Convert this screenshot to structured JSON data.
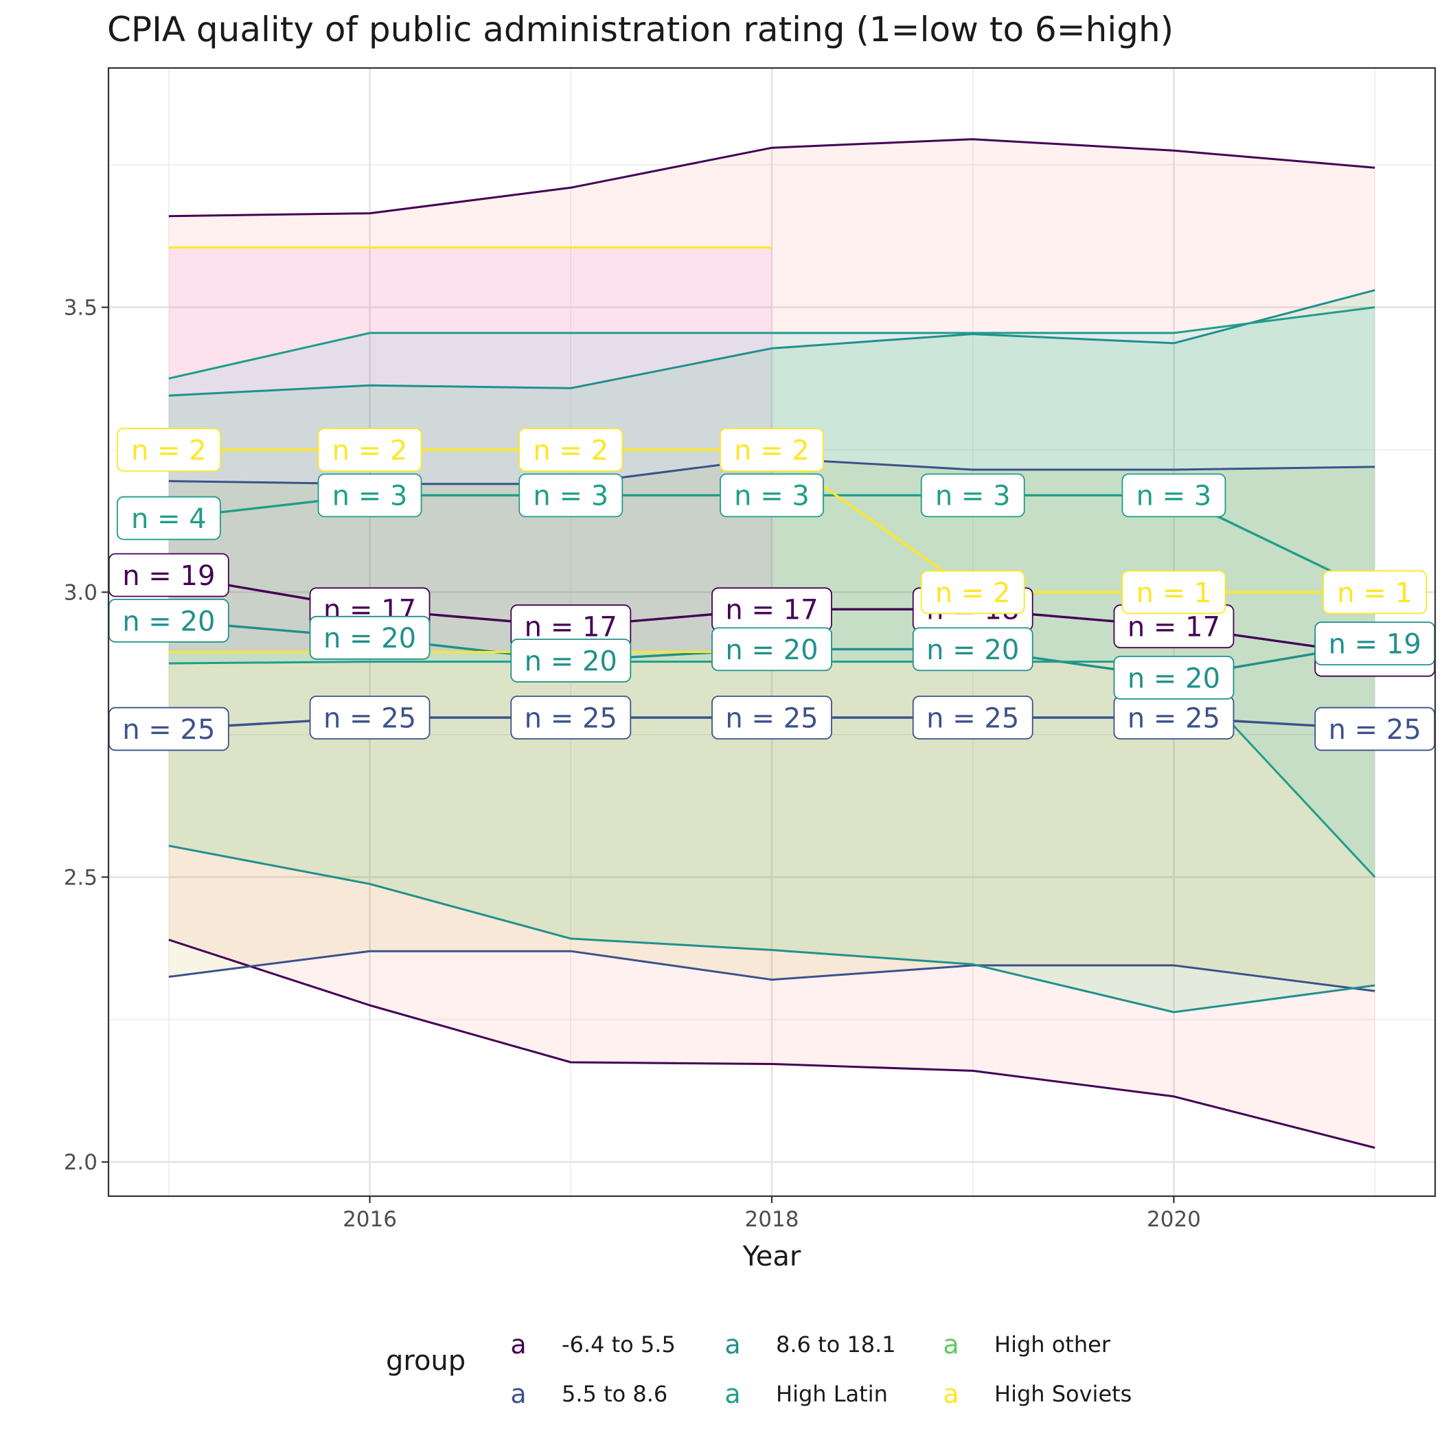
{
  "chart_data": {
    "type": "line",
    "title": "CPIA quality of public administration rating (1=low to 6=high)",
    "xlabel": "Year",
    "ylabel": "",
    "xlim": [
      2014.7,
      2021.3
    ],
    "ylim": [
      1.94,
      3.92
    ],
    "x_ticks": [
      2016,
      2018,
      2020
    ],
    "y_ticks": [
      2.0,
      2.5,
      3.0,
      3.5
    ],
    "x_tick_labels": [
      "2016",
      "2018",
      "2020"
    ],
    "y_tick_labels": [
      "2.0",
      "2.5",
      "3.0",
      "3.5"
    ],
    "grid": true,
    "legend": {
      "title": "group",
      "placement": "bottom",
      "key_glyph": "a",
      "entries": [
        "-6.4 to 5.5",
        "5.5 to 8.6",
        "8.6 to 18.1",
        "High Latin",
        "High other",
        "High Soviets"
      ]
    },
    "x": [
      2015,
      2016,
      2017,
      2018,
      2019,
      2020,
      2021
    ],
    "series": [
      {
        "name": "-6.4 to 5.5",
        "color": "#440154",
        "fill": "#f8766d",
        "mean": [
          3.03,
          2.97,
          2.94,
          2.97,
          2.97,
          2.94,
          2.89
        ],
        "upper": [
          3.66,
          3.665,
          3.71,
          3.78,
          3.795,
          3.775,
          3.745
        ],
        "lower": [
          2.39,
          2.275,
          2.175,
          2.172,
          2.16,
          2.115,
          2.025
        ],
        "n_labels": [
          "n = 19",
          "n = 17",
          "n = 17",
          "n = 17",
          "n = 18",
          "n = 17",
          "n = 17"
        ]
      },
      {
        "name": "5.5 to 8.6",
        "color": "#3b528b",
        "fill": "#b79f00",
        "mean": [
          2.76,
          2.78,
          2.78,
          2.78,
          2.78,
          2.78,
          2.76
        ],
        "upper": [
          3.195,
          3.19,
          3.19,
          3.235,
          3.215,
          3.215,
          3.22
        ],
        "lower": [
          2.325,
          2.37,
          2.37,
          2.32,
          2.345,
          2.345,
          2.3
        ],
        "n_labels": [
          "n = 25",
          "n = 25",
          "n = 25",
          "n = 25",
          "n = 25",
          "n = 25",
          "n = 25"
        ]
      },
      {
        "name": "8.6 to 18.1",
        "color": "#21908c",
        "fill": "#00ba38",
        "mean": [
          2.95,
          2.92,
          2.88,
          2.9,
          2.9,
          2.85,
          2.91
        ],
        "upper": [
          3.345,
          3.363,
          3.358,
          3.428,
          3.453,
          3.437,
          3.53
        ],
        "lower": [
          2.555,
          2.488,
          2.392,
          2.372,
          2.347,
          2.263,
          2.31
        ],
        "n_labels": [
          "n = 20",
          "n = 20",
          "n = 20",
          "n = 20",
          "n = 20",
          "n = 20",
          "n = 19"
        ]
      },
      {
        "name": "High Latin",
        "color": "#1f9e89",
        "fill": "#00bfc4",
        "mean": [
          3.13,
          3.17,
          3.17,
          3.17,
          3.17,
          3.17,
          3.0
        ],
        "upper": [
          3.375,
          3.455,
          3.455,
          3.455,
          3.455,
          3.455,
          3.5
        ],
        "lower": [
          2.875,
          2.878,
          2.878,
          2.878,
          2.878,
          2.878,
          2.5
        ],
        "n_labels": [
          "n = 4",
          "n = 3",
          "n = 3",
          "n = 3",
          "n = 3",
          "n = 3",
          ""
        ]
      },
      {
        "name": "High other",
        "color": "#5ec962",
        "fill": "#619cff",
        "mean": [],
        "upper": [],
        "lower": [],
        "n_labels": []
      },
      {
        "name": "High Soviets",
        "color": "#fde725",
        "fill": "#f564e3",
        "mean": [
          3.25,
          3.25,
          3.25,
          3.25,
          3.0,
          3.0,
          3.0
        ],
        "upper": [
          3.605,
          3.605,
          3.605,
          3.605,
          null,
          null,
          null
        ],
        "lower": [
          2.895,
          2.895,
          2.895,
          2.895,
          null,
          null,
          null
        ],
        "n_labels": [
          "n = 2",
          "n = 2",
          "n = 2",
          "n = 2",
          "n = 2",
          "n = 1",
          "n = 1"
        ]
      }
    ]
  }
}
